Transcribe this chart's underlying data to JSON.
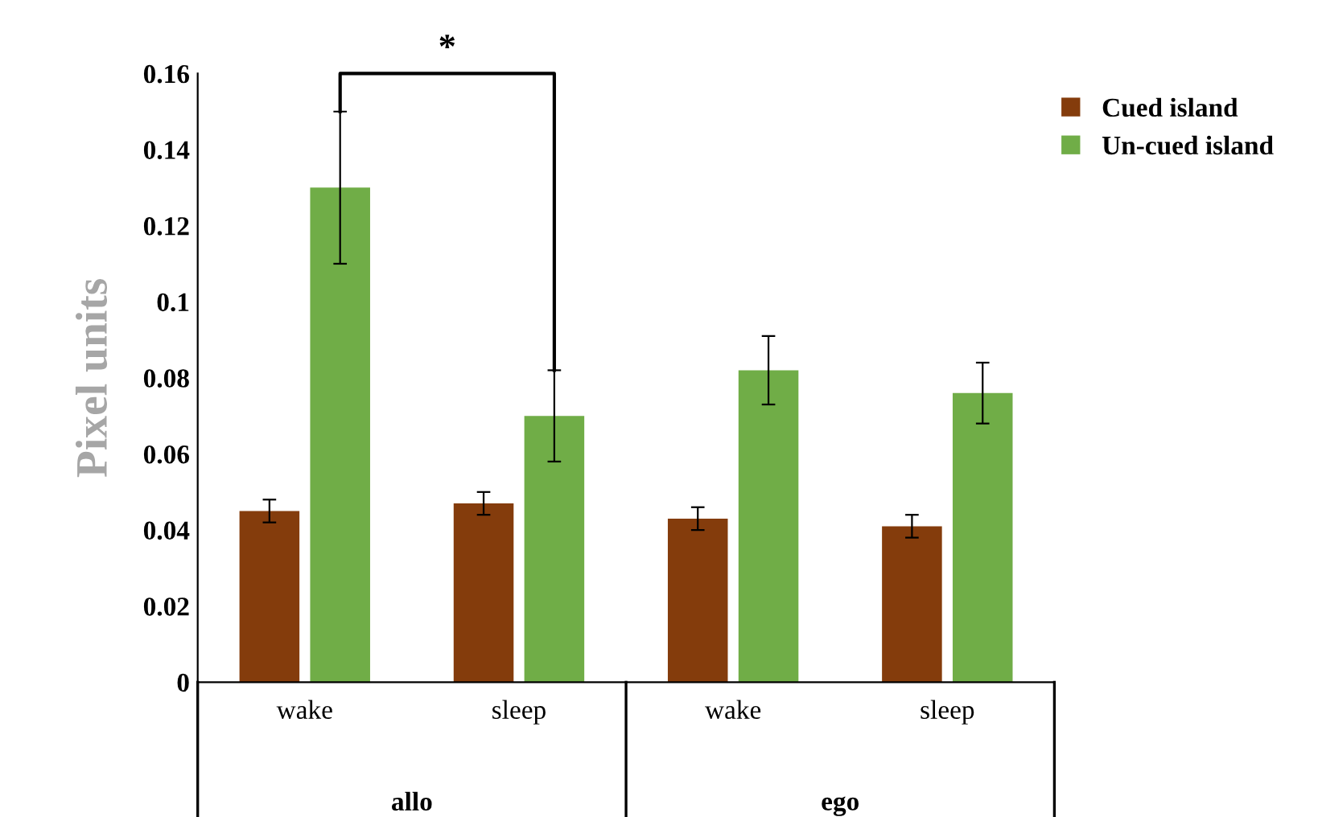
{
  "chart_data": {
    "type": "bar",
    "ylabel": "Pixel units",
    "categories": [
      "wake",
      "sleep",
      "wake",
      "sleep"
    ],
    "series": [
      {
        "name": "Cued island",
        "color": "#843c0c",
        "values": [
          0.045,
          0.047,
          0.043,
          0.041
        ],
        "errors": [
          0.003,
          0.003,
          0.003,
          0.003
        ]
      },
      {
        "name": "Un-cued island",
        "color": "#70ad47",
        "values": [
          0.13,
          0.07,
          0.082,
          0.076
        ],
        "errors": [
          0.02,
          0.012,
          0.009,
          0.008
        ]
      }
    ],
    "ylim": [
      0,
      0.16
    ],
    "yticks": [
      0,
      0.02,
      0.04,
      0.06,
      0.08,
      0.1,
      0.12,
      0.14,
      0.16
    ],
    "grid": false,
    "legend": "top right",
    "annotations": [
      "*",
      "allo",
      "ego"
    ]
  }
}
